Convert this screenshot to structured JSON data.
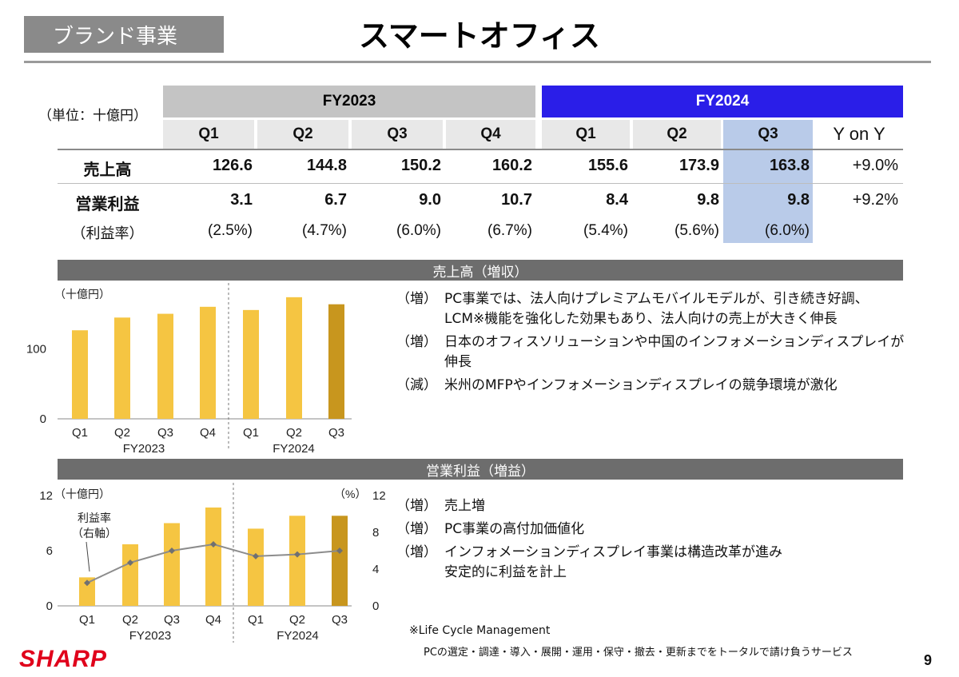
{
  "header": {
    "segment": "ブランド事業",
    "title": "スマートオフィス"
  },
  "table": {
    "unit": "（単位：十億円）",
    "fy2023": "FY2023",
    "fy2024": "FY2024",
    "quarters": [
      "Q1",
      "Q2",
      "Q3",
      "Q4",
      "Q1",
      "Q2",
      "Q3"
    ],
    "yoy_header": "Y on Y",
    "rows": [
      {
        "label": "売上高",
        "values": [
          "126.6",
          "144.8",
          "150.2",
          "160.2",
          "155.6",
          "173.9",
          "163.8"
        ],
        "yoy": "+9.0%"
      },
      {
        "label": "営業利益",
        "values": [
          "3.1",
          "6.7",
          "9.0",
          "10.7",
          "8.4",
          "9.8",
          "9.8"
        ],
        "yoy": "+9.2%"
      },
      {
        "label": "（利益率）",
        "values": [
          "(2.5%)",
          "(4.7%)",
          "(6.0%)",
          "(6.7%)",
          "(5.4%)",
          "(5.6%)",
          "(6.0%)"
        ],
        "yoy": ""
      }
    ]
  },
  "sales_section": {
    "title": "売上高（増収）",
    "bullets": [
      {
        "tag": "（増）",
        "lines": [
          "PC事業では、法人向けプレミアムモバイルモデルが、引き続き好調、",
          "LCM※機能を強化した効果もあり、法人向けの売上が大きく伸長"
        ]
      },
      {
        "tag": "（増）",
        "lines": [
          "日本のオフィスソリューションや中国のインフォメーションディスプレイが",
          "伸長"
        ]
      },
      {
        "tag": "（減）",
        "lines": [
          "米州のMFPやインフォメーションディスプレイの競争環境が激化"
        ]
      }
    ]
  },
  "profit_section": {
    "title": "営業利益（増益）",
    "bullets": [
      {
        "tag": "（増）",
        "lines": [
          "売上増"
        ]
      },
      {
        "tag": "（増）",
        "lines": [
          "PC事業の高付加価値化"
        ]
      },
      {
        "tag": "（増）",
        "lines": [
          "インフォメーションディスプレイ事業は構造改革が進み",
          "安定的に利益を計上"
        ]
      }
    ]
  },
  "footnote": {
    "line1": "※Life Cycle Management",
    "line2": "PCの選定・調達・導入・展開・運用・保守・撤去・更新までをトータルで請け負うサービス"
  },
  "page_number": "9",
  "logo": "SHARP",
  "colors": {
    "bar": "#f5c542",
    "bar_highlight": "#c8961e",
    "line": "#8c8c8c",
    "fy2024_header": "#2a1ee8",
    "highlight_column": "#b9cbe9"
  },
  "chart_data": [
    {
      "type": "bar",
      "unit_label": "（十億円）",
      "categories": [
        "Q1",
        "Q2",
        "Q3",
        "Q4",
        "Q1",
        "Q2",
        "Q3"
      ],
      "groups": [
        "FY2023",
        "FY2024"
      ],
      "group_sizes": [
        4,
        3
      ],
      "values": [
        126.6,
        144.8,
        150.2,
        160.2,
        155.6,
        173.9,
        163.8
      ],
      "yticks": [
        0,
        100
      ],
      "ylim": [
        0,
        180
      ],
      "highlight_index": 6
    },
    {
      "type": "bar",
      "unit_label": "（十億円）",
      "right_unit_label": "（%）",
      "categories": [
        "Q1",
        "Q2",
        "Q3",
        "Q4",
        "Q1",
        "Q2",
        "Q3"
      ],
      "groups": [
        "FY2023",
        "FY2024"
      ],
      "group_sizes": [
        4,
        3
      ],
      "values": [
        3.1,
        6.7,
        9.0,
        10.7,
        8.4,
        9.8,
        9.8
      ],
      "yticks": [
        0,
        6,
        12
      ],
      "ylim": [
        0,
        12
      ],
      "highlight_index": 6,
      "line_series": {
        "name_lines": [
          "利益率",
          "（右軸）"
        ],
        "values": [
          2.5,
          4.7,
          6.0,
          6.7,
          5.4,
          5.6,
          6.0
        ],
        "yticks": [
          0,
          4,
          8,
          12
        ],
        "ylim": [
          0,
          12
        ]
      }
    }
  ]
}
